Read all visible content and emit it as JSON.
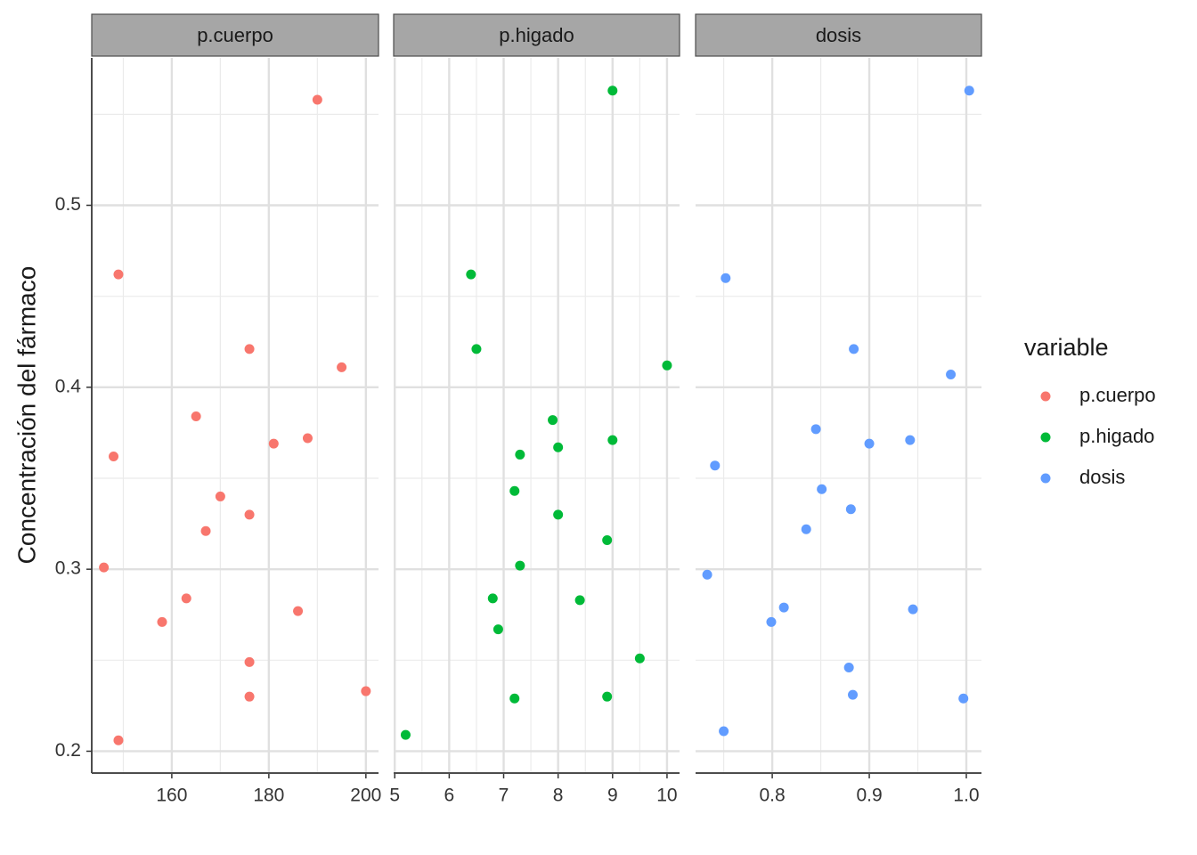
{
  "chart_data": [
    {
      "type": "scatter",
      "title": "p.cuerpo",
      "ylabel": "Concentración del fármaco",
      "legend_title": "variable",
      "xlim": [
        143.5,
        202.6
      ],
      "xticks": [
        160,
        180,
        200
      ],
      "xminor": [
        150,
        170,
        190
      ],
      "ylim": [
        0.188,
        0.581
      ],
      "yticks": [
        0.2,
        0.3,
        0.4,
        0.5
      ],
      "yminor": [
        0.25,
        0.35,
        0.45,
        0.55
      ],
      "grid": true,
      "series": [
        {
          "name": "p.cuerpo",
          "color": "#f8766d",
          "x": [
            190,
            149,
            176,
            195,
            165,
            148,
            188,
            181,
            170,
            176,
            167,
            146,
            163,
            158,
            186,
            176,
            176,
            200,
            149
          ],
          "values": [
            0.558,
            0.462,
            0.421,
            0.411,
            0.384,
            0.362,
            0.372,
            0.369,
            0.34,
            0.33,
            0.321,
            0.301,
            0.284,
            0.271,
            0.277,
            0.249,
            0.23,
            0.233,
            0.206
          ]
        }
      ]
    },
    {
      "type": "scatter",
      "title": "p.higado",
      "xlim": [
        4.98,
        10.23
      ],
      "xticks": [
        5,
        6,
        7,
        8,
        9,
        10
      ],
      "xminor": [
        5.5,
        6.5,
        7.5,
        8.5,
        9.5
      ],
      "series": [
        {
          "name": "p.higado",
          "color": "#00ba38",
          "x": [
            9.0,
            6.4,
            6.5,
            10.0,
            7.9,
            8.0,
            9.0,
            7.3,
            7.2,
            8.0,
            8.9,
            7.3,
            6.8,
            8.4,
            6.9,
            9.5,
            7.2,
            8.9,
            5.2
          ],
          "values": [
            0.563,
            0.462,
            0.421,
            0.412,
            0.382,
            0.367,
            0.371,
            0.363,
            0.343,
            0.33,
            0.316,
            0.302,
            0.284,
            0.283,
            0.267,
            0.251,
            0.229,
            0.23,
            0.209
          ]
        }
      ]
    },
    {
      "type": "scatter",
      "title": "dosis",
      "xlim": [
        0.721,
        1.0156
      ],
      "xticks": [
        0.8,
        0.9,
        {
          "value": 1,
          "label": "1.0"
        }
      ],
      "xminor": [
        0.75,
        0.85,
        0.95
      ],
      "series": [
        {
          "name": "dosis",
          "color": "#619cff",
          "x": [
            1.003,
            0.752,
            0.884,
            0.984,
            0.845,
            0.9,
            0.942,
            0.741,
            0.851,
            0.881,
            0.835,
            0.733,
            0.812,
            0.799,
            0.945,
            0.879,
            0.883,
            0.997,
            0.75
          ],
          "values": [
            0.563,
            0.46,
            0.421,
            0.407,
            0.377,
            0.369,
            0.371,
            0.357,
            0.344,
            0.333,
            0.322,
            0.297,
            0.279,
            0.271,
            0.278,
            0.246,
            0.231,
            0.229,
            0.211
          ]
        }
      ]
    }
  ]
}
